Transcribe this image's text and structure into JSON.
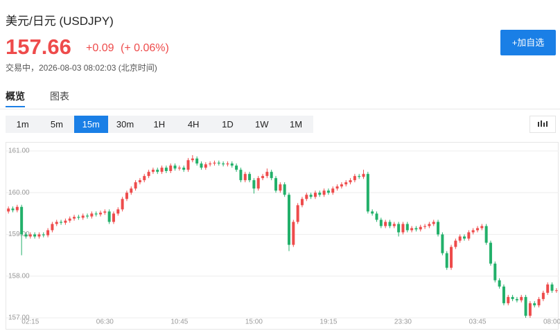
{
  "header": {
    "title": "美元/日元 (USDJPY)",
    "price": "157.66",
    "change": "+0.09",
    "change_pct": "(+ 0.06%)",
    "status": "交易中，2026-08-03 08:02:03 (北京时间)",
    "button": "+加自选"
  },
  "tabs": [
    "概览",
    "图表"
  ],
  "periods": [
    "1m",
    "5m",
    "15m",
    "30m",
    "1H",
    "4H",
    "1D",
    "1W",
    "1M"
  ],
  "active_period": "15m",
  "chart_data": {
    "type": "candlestick",
    "up_color": "#ee4b4b",
    "down_color": "#22b06a",
    "grid": true,
    "ylim": [
      156.8,
      161.2
    ],
    "yticks": [
      {
        "value": 157,
        "label": "157.00"
      },
      {
        "value": 158,
        "label": "158.00"
      },
      {
        "value": 159,
        "label": "159.00"
      },
      {
        "value": 160,
        "label": "160.00"
      },
      {
        "value": 161,
        "label": "161.00"
      }
    ],
    "categories": [
      null,
      null,
      null,
      null,
      null,
      "02:15",
      null,
      null,
      null,
      null,
      null,
      null,
      null,
      null,
      null,
      null,
      null,
      null,
      null,
      null,
      null,
      null,
      "06:30",
      null,
      null,
      null,
      null,
      null,
      null,
      null,
      null,
      null,
      null,
      null,
      null,
      null,
      null,
      null,
      null,
      "10:45",
      null,
      null,
      null,
      null,
      null,
      null,
      null,
      null,
      null,
      null,
      null,
      null,
      null,
      null,
      null,
      null,
      "15:00",
      null,
      null,
      null,
      null,
      null,
      null,
      null,
      null,
      null,
      null,
      null,
      null,
      null,
      null,
      null,
      null,
      "19:15",
      null,
      null,
      null,
      null,
      null,
      null,
      null,
      null,
      null,
      null,
      null,
      null,
      null,
      null,
      null,
      null,
      "23:30",
      null,
      null,
      null,
      null,
      null,
      null,
      null,
      null,
      null,
      null,
      null,
      null,
      null,
      null,
      null,
      null,
      "03:45",
      null,
      null,
      null,
      null,
      null,
      null,
      null,
      null,
      null,
      null,
      null,
      null,
      null,
      null,
      null,
      null,
      "08:00",
      null
    ],
    "open": [
      159.55,
      159.62,
      159.58,
      159.66,
      159.0,
      158.95,
      159.0,
      158.95,
      159.0,
      158.98,
      159.1,
      159.25,
      159.3,
      159.28,
      159.33,
      159.38,
      159.42,
      159.4,
      159.45,
      159.43,
      159.5,
      159.48,
      159.52,
      159.55,
      159.3,
      159.5,
      159.6,
      159.85,
      160.0,
      160.1,
      160.25,
      160.3,
      160.4,
      160.5,
      160.55,
      160.5,
      160.6,
      160.52,
      160.65,
      160.58,
      160.6,
      160.55,
      160.78,
      160.82,
      160.7,
      160.6,
      160.68,
      160.7,
      160.72,
      160.7,
      160.68,
      160.7,
      160.65,
      160.55,
      160.3,
      160.45,
      160.3,
      160.1,
      160.35,
      160.4,
      160.5,
      160.35,
      160.05,
      160.2,
      159.95,
      158.75,
      159.3,
      159.7,
      159.85,
      159.95,
      159.9,
      160.0,
      159.95,
      160.05,
      160.0,
      160.1,
      160.15,
      160.2,
      160.25,
      160.3,
      160.4,
      160.38,
      160.45,
      159.55,
      159.5,
      159.35,
      159.2,
      159.3,
      159.2,
      159.25,
      159.05,
      159.25,
      159.1,
      159.15,
      159.12,
      159.18,
      159.2,
      159.25,
      159.3,
      159.0,
      158.55,
      158.2,
      158.7,
      158.85,
      158.95,
      158.9,
      159.05,
      159.1,
      159.15,
      159.2,
      158.8,
      158.3,
      157.9,
      157.75,
      157.35,
      157.5,
      157.45,
      157.42,
      157.5,
      157.05,
      157.35,
      157.3,
      157.45,
      157.6,
      157.8,
      157.65
    ],
    "high": [
      159.67,
      159.67,
      159.71,
      159.71,
      159.05,
      159.05,
      159.05,
      159.05,
      159.05,
      159.15,
      159.3,
      159.35,
      159.35,
      159.38,
      159.43,
      159.47,
      159.47,
      159.5,
      159.5,
      159.55,
      159.55,
      159.57,
      159.6,
      159.6,
      159.55,
      159.65,
      159.9,
      160.05,
      160.15,
      160.3,
      160.35,
      160.45,
      160.55,
      160.6,
      160.6,
      160.65,
      160.65,
      160.7,
      160.7,
      160.65,
      160.65,
      160.83,
      160.9,
      160.87,
      160.75,
      160.73,
      160.75,
      160.77,
      160.77,
      160.75,
      160.75,
      160.75,
      160.7,
      160.6,
      160.5,
      160.5,
      160.35,
      160.4,
      160.45,
      160.58,
      160.55,
      160.4,
      160.25,
      160.25,
      160.0,
      159.35,
      159.75,
      159.9,
      160.0,
      160.0,
      160.05,
      160.05,
      160.1,
      160.1,
      160.15,
      160.2,
      160.25,
      160.3,
      160.35,
      160.45,
      160.45,
      160.55,
      160.5,
      159.6,
      159.55,
      159.4,
      159.35,
      159.35,
      159.3,
      159.3,
      159.3,
      159.3,
      159.2,
      159.2,
      159.23,
      159.25,
      159.3,
      159.35,
      159.35,
      159.05,
      158.6,
      158.75,
      158.9,
      159.0,
      159.0,
      159.1,
      159.15,
      159.2,
      159.25,
      159.25,
      158.85,
      158.35,
      157.95,
      157.8,
      157.55,
      157.55,
      157.5,
      157.55,
      157.55,
      157.4,
      157.4,
      157.5,
      157.65,
      157.85,
      157.85,
      157.71
    ],
    "low": [
      159.5,
      159.53,
      159.53,
      158.5,
      158.9,
      158.9,
      158.9,
      158.9,
      158.93,
      158.93,
      159.05,
      159.2,
      159.23,
      159.23,
      159.28,
      159.33,
      159.35,
      159.35,
      159.38,
      159.38,
      159.43,
      159.43,
      159.47,
      159.25,
      159.25,
      159.45,
      159.55,
      159.8,
      159.95,
      160.05,
      160.2,
      160.25,
      160.35,
      160.45,
      160.45,
      160.45,
      160.47,
      160.47,
      160.53,
      160.53,
      160.5,
      160.5,
      160.73,
      160.65,
      160.55,
      160.55,
      160.63,
      160.65,
      160.65,
      160.63,
      160.63,
      160.6,
      160.5,
      160.25,
      160.25,
      160.25,
      159.98,
      160.05,
      160.3,
      160.35,
      160.3,
      160.0,
      160.0,
      159.9,
      158.6,
      158.7,
      159.25,
      159.65,
      159.8,
      159.85,
      159.85,
      159.9,
      159.9,
      159.95,
      159.95,
      160.05,
      160.1,
      160.15,
      160.2,
      160.25,
      160.33,
      160.33,
      159.5,
      159.45,
      159.3,
      159.15,
      159.15,
      159.15,
      159.15,
      158.95,
      159.0,
      159.05,
      159.05,
      159.07,
      159.07,
      159.13,
      159.15,
      159.2,
      158.95,
      158.5,
      158.15,
      158.15,
      158.65,
      158.8,
      158.85,
      158.85,
      159.0,
      159.05,
      159.1,
      158.75,
      158.25,
      157.85,
      157.7,
      157.3,
      157.3,
      157.4,
      157.37,
      157.37,
      157.0,
      157.0,
      157.25,
      157.25,
      157.4,
      157.55,
      157.6,
      157.6
    ],
    "close": [
      159.62,
      159.58,
      159.66,
      159.0,
      158.95,
      159.0,
      158.95,
      159.0,
      158.98,
      159.1,
      159.25,
      159.3,
      159.28,
      159.33,
      159.38,
      159.42,
      159.4,
      159.45,
      159.43,
      159.5,
      159.48,
      159.52,
      159.55,
      159.3,
      159.5,
      159.6,
      159.85,
      160.0,
      160.1,
      160.25,
      160.3,
      160.4,
      160.5,
      160.55,
      160.5,
      160.6,
      160.52,
      160.65,
      160.58,
      160.6,
      160.55,
      160.78,
      160.82,
      160.7,
      160.6,
      160.68,
      160.7,
      160.72,
      160.7,
      160.68,
      160.7,
      160.65,
      160.55,
      160.3,
      160.45,
      160.3,
      160.1,
      160.35,
      160.4,
      160.5,
      160.35,
      160.05,
      160.2,
      159.95,
      158.75,
      159.3,
      159.7,
      159.85,
      159.95,
      159.9,
      160.0,
      159.95,
      160.05,
      160.0,
      160.1,
      160.15,
      160.2,
      160.25,
      160.3,
      160.4,
      160.38,
      160.45,
      159.55,
      159.5,
      159.35,
      159.2,
      159.3,
      159.2,
      159.25,
      159.05,
      159.25,
      159.1,
      159.15,
      159.12,
      159.18,
      159.2,
      159.25,
      159.3,
      159.0,
      158.55,
      158.2,
      158.7,
      158.85,
      158.95,
      158.9,
      159.05,
      159.1,
      159.15,
      159.2,
      158.8,
      158.3,
      157.9,
      157.75,
      157.35,
      157.5,
      157.45,
      157.42,
      157.5,
      157.05,
      157.35,
      157.3,
      157.45,
      157.6,
      157.8,
      157.65,
      157.66
    ]
  }
}
